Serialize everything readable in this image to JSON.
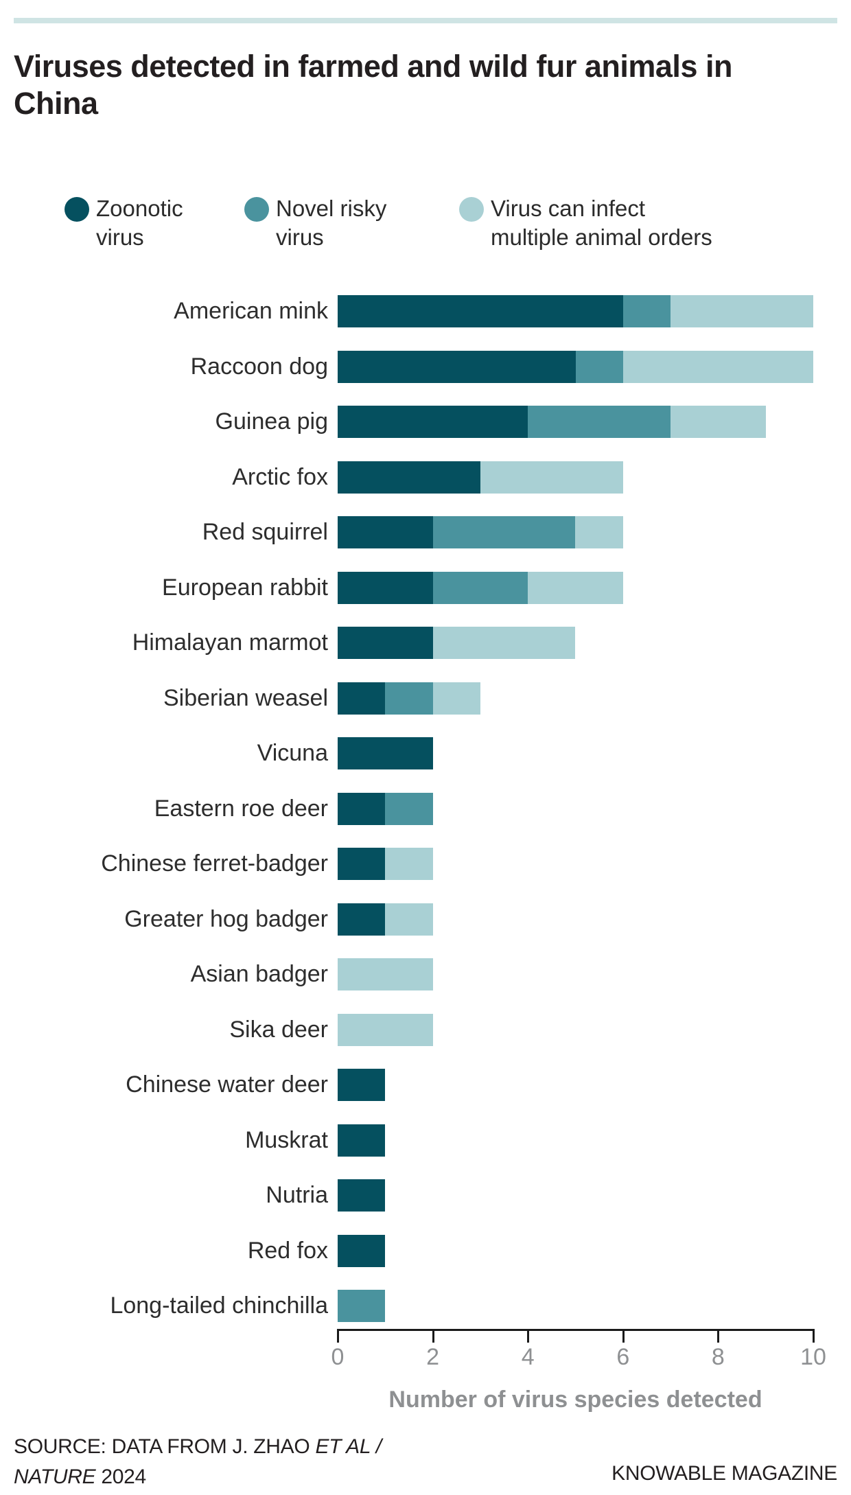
{
  "title": "Viruses detected in farmed and wild fur animals in China",
  "colors": {
    "zoonotic": "#05505f",
    "novel_risky": "#4a939e",
    "multi_order": "#a9d0d4",
    "top_rule": "#cfe4e4",
    "axis": "#1a1a1a",
    "axis_text": "#8e9092",
    "text": "#231f20"
  },
  "legend": {
    "items": [
      {
        "label": "Zoonotic virus",
        "color": "#05505f"
      },
      {
        "label": "Novel risky virus",
        "color": "#4a939e"
      },
      {
        "label": "Virus can infect multiple animal orders",
        "color": "#a9d0d4"
      }
    ]
  },
  "chart_data": {
    "type": "bar",
    "orientation": "horizontal",
    "stacked": true,
    "title": "Viruses detected in farmed and wild fur animals in China",
    "xlabel": "Number of virus species detected",
    "xlim": [
      0,
      10
    ],
    "xticks": [
      0,
      2,
      4,
      6,
      8,
      10
    ],
    "grid": false,
    "legend_position": "top",
    "categories": [
      "American mink",
      "Raccoon dog",
      "Guinea pig",
      "Arctic fox",
      "Red squirrel",
      "European rabbit",
      "Himalayan marmot",
      "Siberian weasel",
      "Vicuna",
      "Eastern roe deer",
      "Chinese ferret-badger",
      "Greater hog badger",
      "Asian badger",
      "Sika deer",
      "Chinese water deer",
      "Muskrat",
      "Nutria",
      "Red fox",
      "Long-tailed chinchilla"
    ],
    "series": [
      {
        "name": "Zoonotic virus",
        "color": "#05505f",
        "values": [
          6,
          5,
          4,
          3,
          2,
          2,
          2,
          1,
          2,
          1,
          1,
          1,
          0,
          0,
          1,
          1,
          1,
          1,
          0
        ]
      },
      {
        "name": "Novel risky virus",
        "color": "#4a939e",
        "values": [
          1,
          1,
          3,
          0,
          3,
          2,
          0,
          1,
          0,
          1,
          0,
          0,
          0,
          0,
          0,
          0,
          0,
          0,
          1
        ]
      },
      {
        "name": "Virus can infect multiple animal orders",
        "color": "#a9d0d4",
        "values": [
          3,
          4,
          2,
          3,
          1,
          2,
          3,
          1,
          0,
          0,
          1,
          1,
          2,
          2,
          0,
          0,
          0,
          0,
          0
        ]
      }
    ],
    "totals": [
      10,
      10,
      9,
      6,
      6,
      6,
      5,
      3,
      2,
      2,
      2,
      2,
      2,
      2,
      1,
      1,
      1,
      1,
      1
    ]
  },
  "footer": {
    "source_line1": [
      {
        "text": "SOURCE: DATA FROM J. ZHAO ",
        "italic": false
      },
      {
        "text": "ET AL /",
        "italic": true
      }
    ],
    "source_line2": [
      {
        "text": "NATURE",
        "italic": true
      },
      {
        "text": " 2024",
        "italic": false
      }
    ],
    "brand": "KNOWABLE MAGAZINE"
  }
}
